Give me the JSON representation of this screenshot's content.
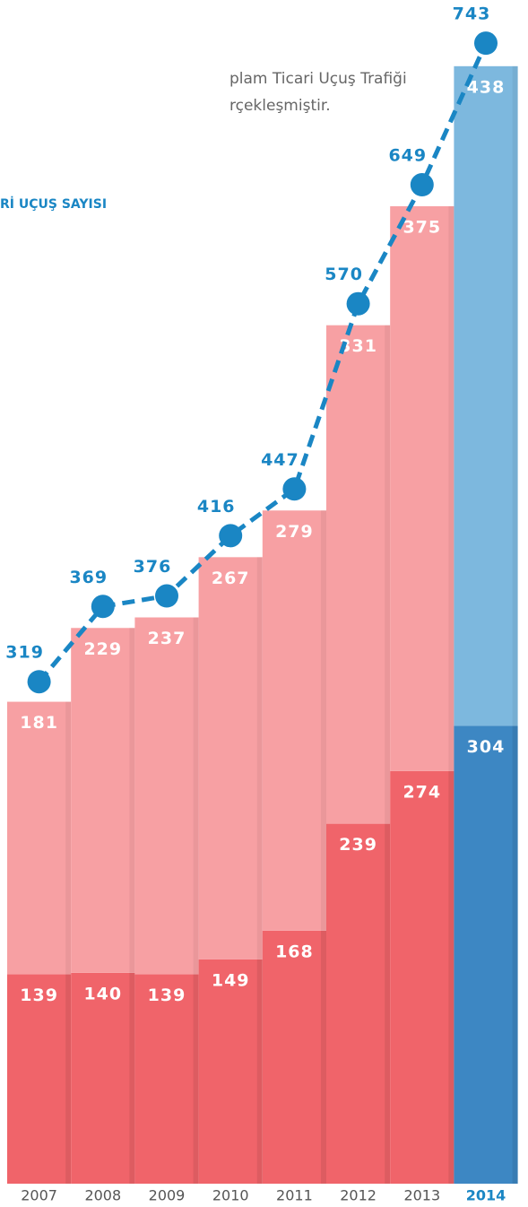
{
  "chart_data": {
    "type": "bar",
    "texts": [
      "plam Ticari Uçuş Trafiği",
      "rçekleşmiştir.",
      "Rİ UÇUŞ SAYISI"
    ],
    "categories": [
      "2007",
      "2008",
      "2009",
      "2010",
      "2011",
      "2012",
      "2013",
      "2014"
    ],
    "label_colors": [
      "#555555",
      "#555555",
      "#555555",
      "#555555",
      "#555555",
      "#555555",
      "#555555",
      "#1a86c4"
    ],
    "series": [
      {
        "color": "#f0646a",
        "colors": [
          "#f0646a",
          "#f0646a",
          "#f0646a",
          "#f0646a",
          "#f0646a",
          "#f0646a",
          "#f0646a",
          "#3d87c3"
        ],
        "values": [
          139,
          140,
          139,
          149,
          168,
          239,
          274,
          304
        ]
      },
      {
        "color": "#f7a0a3",
        "colors": [
          "#f7a0a3",
          "#f7a0a3",
          "#f7a0a3",
          "#f7a0a3",
          "#f7a0a3",
          "#f7a0a3",
          "#f7a0a3",
          "#7db8de"
        ],
        "values": [
          181,
          229,
          237,
          267,
          279,
          331,
          375,
          438
        ]
      },
      {
        "type": "line",
        "color": "#1a86c4",
        "values": [
          319,
          369,
          376,
          416,
          447,
          570,
          649,
          743
        ]
      }
    ],
    "ylim": [
      0,
      780
    ]
  }
}
